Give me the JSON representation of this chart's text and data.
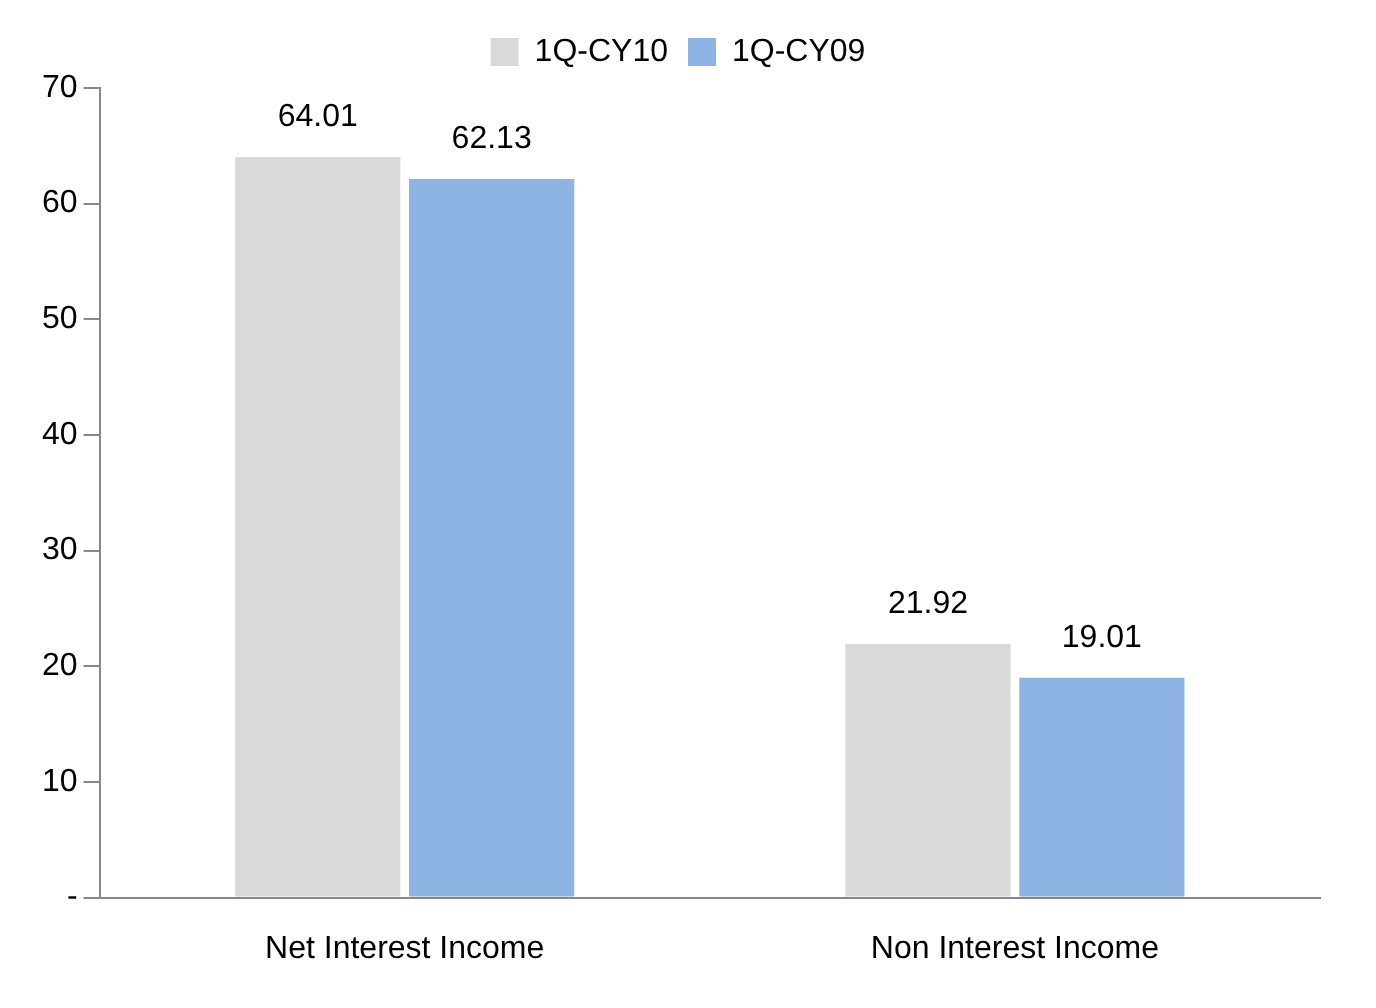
{
  "chart_data": {
    "type": "bar",
    "categories": [
      "Net Interest Income",
      "Non Interest Income"
    ],
    "series": [
      {
        "name": "1Q-CY10",
        "color": "#d9d9d9",
        "values": [
          64.01,
          21.92
        ]
      },
      {
        "name": "1Q-CY09",
        "color": "#8db4e2",
        "values": [
          62.13,
          19.01
        ]
      }
    ],
    "ylim": [
      0,
      70
    ],
    "yticks": [
      {
        "value": 0,
        "label": "-"
      },
      10,
      20,
      30,
      40,
      50,
      60,
      70
    ],
    "grid": false,
    "legend": "top",
    "data_labels": true
  }
}
